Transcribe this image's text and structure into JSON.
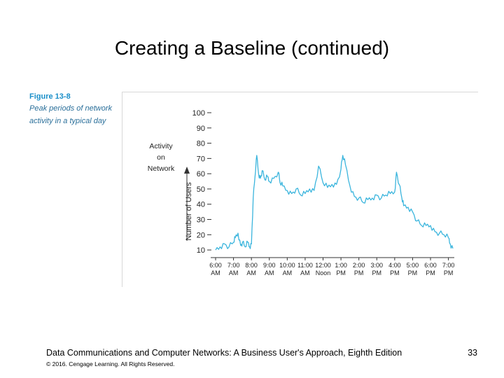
{
  "slide": {
    "title": "Creating a Baseline (continued)",
    "figure_number": "Figure 13-8",
    "figure_description": "Peak periods of network activity in a typical day",
    "footer_source": "Data Communications and Computer Networks: A Business User's Approach, Eighth Edition",
    "page_number": "33",
    "copyright": "© 2016. Cengage Learning. All Rights Reserved."
  },
  "chart_data": {
    "type": "line",
    "title": "",
    "xlabel": "",
    "ylabel": "Number of Users",
    "side_label": [
      "Activity",
      "on",
      "Network"
    ],
    "ylim": [
      5,
      100
    ],
    "xlim": [
      6,
      19.25
    ],
    "y_ticks": [
      10,
      20,
      30,
      40,
      50,
      60,
      70,
      80,
      90,
      100
    ],
    "x_ticks": [
      {
        "value": 6,
        "label": [
          "6:00",
          "AM"
        ]
      },
      {
        "value": 7,
        "label": [
          "7:00",
          "AM"
        ]
      },
      {
        "value": 8,
        "label": [
          "8:00",
          "AM"
        ]
      },
      {
        "value": 9,
        "label": [
          "9:00",
          "AM"
        ]
      },
      {
        "value": 10,
        "label": [
          "10:00",
          "AM"
        ]
      },
      {
        "value": 11,
        "label": [
          "11:00",
          "AM"
        ]
      },
      {
        "value": 12,
        "label": [
          "12:00",
          "Noon"
        ]
      },
      {
        "value": 13,
        "label": [
          "1:00",
          "PM"
        ]
      },
      {
        "value": 14,
        "label": [
          "2:00",
          "PM"
        ]
      },
      {
        "value": 15,
        "label": [
          "3:00",
          "PM"
        ]
      },
      {
        "value": 16,
        "label": [
          "4:00",
          "PM"
        ]
      },
      {
        "value": 17,
        "label": [
          "5:00",
          "PM"
        ]
      },
      {
        "value": 18,
        "label": [
          "6:00",
          "PM"
        ]
      },
      {
        "value": 19,
        "label": [
          "7:00",
          "PM"
        ]
      }
    ],
    "series": [
      {
        "name": "Activity",
        "color": "#3bb5dd",
        "x": [
          6.0,
          6.25,
          6.5,
          6.75,
          7.0,
          7.1,
          7.25,
          7.4,
          7.5,
          7.65,
          7.8,
          7.9,
          8.0,
          8.1,
          8.2,
          8.3,
          8.4,
          8.5,
          8.6,
          8.75,
          8.9,
          9.0,
          9.25,
          9.5,
          9.6,
          9.75,
          10.0,
          10.25,
          10.5,
          10.75,
          11.0,
          11.25,
          11.5,
          11.75,
          12.0,
          12.25,
          12.5,
          12.75,
          13.0,
          13.1,
          13.25,
          13.5,
          13.75,
          14.0,
          14.25,
          14.5,
          14.75,
          15.0,
          15.25,
          15.5,
          15.75,
          16.0,
          16.1,
          16.25,
          16.4,
          16.5,
          16.75,
          17.0,
          17.25,
          17.5,
          17.75,
          18.0,
          18.25,
          18.5,
          18.75,
          19.0,
          19.1,
          19.25
        ],
        "values": [
          10,
          12,
          14,
          12,
          15,
          18,
          21,
          13,
          15,
          12,
          15,
          12,
          14,
          44,
          58,
          72,
          60,
          57,
          62,
          56,
          58,
          55,
          57,
          61,
          54,
          52,
          49,
          47,
          50,
          46,
          47,
          50,
          49,
          65,
          54,
          51,
          53,
          53,
          63,
          72,
          66,
          52,
          45,
          44,
          41,
          43,
          44,
          46,
          44,
          46,
          47,
          48,
          61,
          53,
          44,
          39,
          38,
          35,
          29,
          26,
          26,
          26,
          22,
          21,
          20,
          18,
          14,
          11
        ]
      }
    ]
  }
}
